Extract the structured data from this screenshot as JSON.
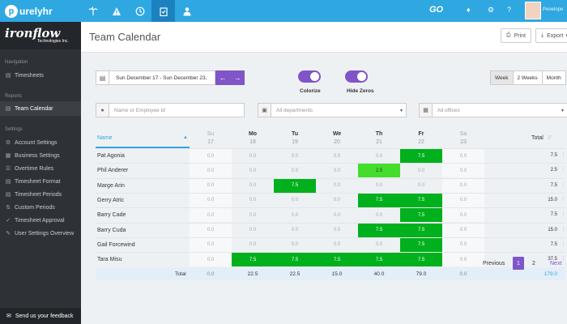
{
  "topbar": {
    "logo_text": "urelyhr",
    "logo_letter": "p",
    "go_text": "GO",
    "user_name": "Penelope"
  },
  "sidebar": {
    "brand_name": "ironflow",
    "brand_sub": "Technologies Inc.",
    "sections": {
      "navigation": "Navigation",
      "reports": "Reports",
      "settings": "Settings"
    },
    "items": [
      {
        "label": "Timesheets"
      },
      {
        "label": "Team Calendar"
      },
      {
        "label": "Account Settings"
      },
      {
        "label": "Business Settings"
      },
      {
        "label": "Overtime Rules"
      },
      {
        "label": "Timesheet Format"
      },
      {
        "label": "Timesheet Periods"
      },
      {
        "label": "Custom Periods"
      },
      {
        "label": "Timesheet Approval"
      },
      {
        "label": "User Settings Overview"
      }
    ],
    "feedback": "Send us your feedback"
  },
  "header": {
    "title": "Team Calendar",
    "print": "Print",
    "export": "Export"
  },
  "controls": {
    "date_range": "Sun December 17 - Sun December 23,",
    "colorize": "Colorize",
    "hide_zeros": "Hide Zeros",
    "views": [
      "Week",
      "2 Weeks",
      "Month"
    ]
  },
  "filters": {
    "employee_placeholder": "Name or Employee Id",
    "departments": "All departments",
    "offices": "All offices"
  },
  "table": {
    "name_header": "Name",
    "total_header": "Total",
    "days": [
      {
        "name": "Su",
        "date": "17",
        "weekend": true
      },
      {
        "name": "Mo",
        "date": "18",
        "weekend": false
      },
      {
        "name": "Tu",
        "date": "19",
        "weekend": false
      },
      {
        "name": "We",
        "date": "20",
        "weekend": false
      },
      {
        "name": "Th",
        "date": "21",
        "weekend": false
      },
      {
        "name": "Fr",
        "date": "22",
        "weekend": false
      },
      {
        "name": "Sa",
        "date": "23",
        "weekend": true
      }
    ],
    "rows": [
      {
        "name": "Pat Agonia",
        "values": [
          "0.0",
          "0.0",
          "0.0",
          "0.0",
          "0.0",
          "7.5",
          "0.0"
        ],
        "total": "7.5"
      },
      {
        "name": "Phil Anderer",
        "values": [
          "0.0",
          "0.0",
          "0.0",
          "0.0",
          "2.5",
          "0.0",
          "0.0"
        ],
        "total": "2.5"
      },
      {
        "name": "Marge Arin",
        "values": [
          "0.0",
          "0.0",
          "7.5",
          "0.0",
          "0.0",
          "0.0",
          "0.0"
        ],
        "total": "7.5"
      },
      {
        "name": "Gerry Atric",
        "values": [
          "0.0",
          "0.0",
          "0.0",
          "0.0",
          "7.5",
          "7.5",
          "0.0"
        ],
        "total": "15.0"
      },
      {
        "name": "Barry Cade",
        "values": [
          "0.0",
          "0.0",
          "0.0",
          "0.0",
          "0.0",
          "7.5",
          "0.0"
        ],
        "total": "7.5"
      },
      {
        "name": "Barry Cuda",
        "values": [
          "0.0",
          "0.0",
          "0.0",
          "0.0",
          "7.5",
          "7.5",
          "0.0"
        ],
        "total": "15.0"
      },
      {
        "name": "Gail Forcewind",
        "values": [
          "0.0",
          "0.0",
          "0.0",
          "0.0",
          "0.0",
          "7.5",
          "0.0"
        ],
        "total": "7.5"
      },
      {
        "name": "Tara Misu",
        "values": [
          "0.0",
          "7.5",
          "7.5",
          "7.5",
          "7.5",
          "7.5",
          "0.0"
        ],
        "total": "37.5"
      }
    ],
    "totals_label": "Total",
    "totals": [
      "0.0",
      "22.5",
      "22.5",
      "15.0",
      "40.0",
      "79.0",
      "0.0"
    ],
    "grand_total": "179.0"
  },
  "pagination": {
    "previous": "Previous",
    "pages": [
      "1",
      "2"
    ],
    "next": "Next"
  },
  "colors": {
    "accent": "#7f55c8",
    "topbar": "#2fa7e1",
    "green": "#00b01c",
    "light_green": "#44dd2c"
  }
}
